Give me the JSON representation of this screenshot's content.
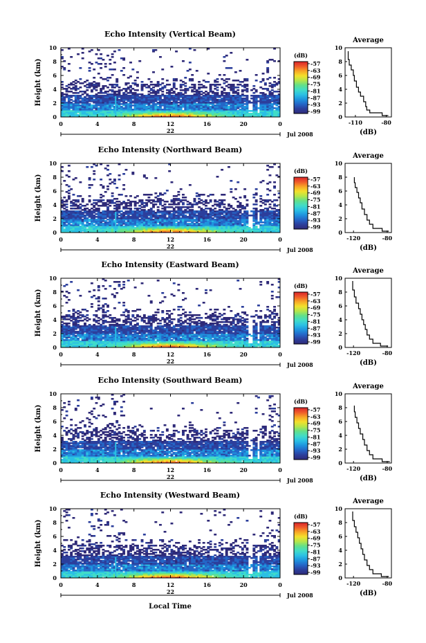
{
  "panels": [
    {
      "title": "Echo Intensity (Vertical Beam)",
      "avg_xticks": [
        "-110",
        "-80"
      ]
    },
    {
      "title": "Echo Intensity (Northward Beam)",
      "avg_xticks": [
        "-120",
        "-80"
      ]
    },
    {
      "title": "Echo Intensity (Eastward Beam)",
      "avg_xticks": [
        "-120",
        "-80"
      ]
    },
    {
      "title": "Echo Intensity (Southward Beam)",
      "avg_xticks": [
        "-120",
        "-80"
      ]
    },
    {
      "title": "Echo Intensity (Westward Beam)",
      "avg_xticks": [
        "-120",
        "-80"
      ]
    }
  ],
  "common": {
    "ylabel": "Height (km)",
    "yticks": [
      "0",
      "2",
      "4",
      "6",
      "8",
      "10"
    ],
    "xticks": [
      "0",
      "4",
      "8",
      "12",
      "16",
      "20",
      "0"
    ],
    "date_day": "22",
    "date_month_year": "Jul 2008",
    "xlabel": "Local Time",
    "colorbar_title": "(dB)",
    "colorbar_ticks": [
      "-57",
      "-63",
      "-69",
      "-75",
      "-81",
      "-87",
      "-93",
      "-99"
    ],
    "avg_title": "Average",
    "avg_xlabel": "(dB)",
    "colormap": [
      "#2f2a78",
      "#2c3f9c",
      "#2466c7",
      "#1f94de",
      "#2bc0e4",
      "#41dcc8",
      "#62e08a",
      "#b6e64a",
      "#f4e02c",
      "#f8a626",
      "#ef5a2a",
      "#d9242a"
    ]
  },
  "chart_data": [
    {
      "type": "heatmap",
      "title": "Echo Intensity (Vertical Beam)",
      "xlabel": "Local Time",
      "ylabel": "Height (km)",
      "xlim": [
        0,
        24
      ],
      "ylim": [
        0,
        10
      ],
      "colorbar": {
        "label": "(dB)",
        "range": [
          -99,
          -57
        ]
      },
      "average_profile": {
        "title": "Average",
        "xlabel": "(dB)",
        "xlim": [
          -120,
          -75
        ],
        "dB": [
          -78,
          -84,
          -96,
          -99,
          -100,
          -102,
          -105,
          -107,
          -109,
          -111,
          -112,
          -114,
          -116,
          -117
        ],
        "height_km": [
          0.2,
          0.6,
          1.0,
          1.5,
          2.2,
          3.0,
          3.6,
          4.3,
          5.2,
          6.0,
          6.8,
          7.5,
          8.3,
          9.5
        ]
      }
    },
    {
      "type": "heatmap",
      "title": "Echo Intensity (Northward Beam)",
      "xlabel": "Local Time",
      "ylabel": "Height (km)",
      "xlim": [
        0,
        24
      ],
      "ylim": [
        0,
        10
      ],
      "colorbar": {
        "label": "(dB)",
        "range": [
          -99,
          -57
        ]
      },
      "average_profile": {
        "title": "Average",
        "xlabel": "(dB)",
        "xlim": [
          -130,
          -75
        ],
        "dB": [
          -78,
          -86,
          -97,
          -101,
          -104,
          -107,
          -110,
          -112,
          -114,
          -116,
          -118,
          -119
        ],
        "height_km": [
          0.2,
          0.6,
          1.2,
          1.8,
          2.6,
          3.4,
          4.3,
          5.0,
          5.8,
          6.5,
          7.2,
          8.0
        ]
      }
    },
    {
      "type": "heatmap",
      "title": "Echo Intensity (Eastward Beam)",
      "xlabel": "Local Time",
      "ylabel": "Height (km)",
      "xlim": [
        0,
        24
      ],
      "ylim": [
        0,
        10
      ],
      "colorbar": {
        "label": "(dB)",
        "range": [
          -99,
          -57
        ]
      },
      "average_profile": {
        "title": "Average",
        "xlabel": "(dB)",
        "xlim": [
          -130,
          -75
        ],
        "dB": [
          -79,
          -88,
          -97,
          -101,
          -104,
          -106,
          -108,
          -110,
          -112,
          -114,
          -117,
          -119,
          -121
        ],
        "height_km": [
          0.2,
          0.6,
          1.2,
          1.8,
          2.6,
          3.3,
          4.0,
          4.8,
          5.6,
          6.4,
          7.3,
          8.3,
          9.6
        ]
      }
    },
    {
      "type": "heatmap",
      "title": "Echo Intensity (Southward Beam)",
      "xlabel": "Local Time",
      "ylabel": "Height (km)",
      "xlim": [
        0,
        24
      ],
      "ylim": [
        0,
        10
      ],
      "colorbar": {
        "label": "(dB)",
        "range": [
          -99,
          -57
        ]
      },
      "average_profile": {
        "title": "Average",
        "xlabel": "(dB)",
        "xlim": [
          -130,
          -75
        ],
        "dB": [
          -77,
          -86,
          -97,
          -101,
          -104,
          -107,
          -109,
          -112,
          -114,
          -116,
          -118,
          -119
        ],
        "height_km": [
          0.2,
          0.6,
          1.2,
          1.8,
          2.6,
          3.4,
          4.2,
          5.0,
          5.8,
          6.6,
          7.4,
          8.3
        ]
      }
    },
    {
      "type": "heatmap",
      "title": "Echo Intensity (Westward Beam)",
      "xlabel": "Local Time",
      "ylabel": "Height (km)",
      "xlim": [
        0,
        24
      ],
      "ylim": [
        0,
        10
      ],
      "colorbar": {
        "label": "(dB)",
        "range": [
          -99,
          -57
        ]
      },
      "average_profile": {
        "title": "Average",
        "xlabel": "(dB)",
        "xlim": [
          -130,
          -75
        ],
        "dB": [
          -78,
          -87,
          -97,
          -101,
          -104,
          -107,
          -109,
          -111,
          -113,
          -115,
          -117,
          -119,
          -121
        ],
        "height_km": [
          0.2,
          0.6,
          1.2,
          1.8,
          2.6,
          3.4,
          4.2,
          5.0,
          5.8,
          6.6,
          7.4,
          8.3,
          9.6
        ]
      }
    }
  ]
}
